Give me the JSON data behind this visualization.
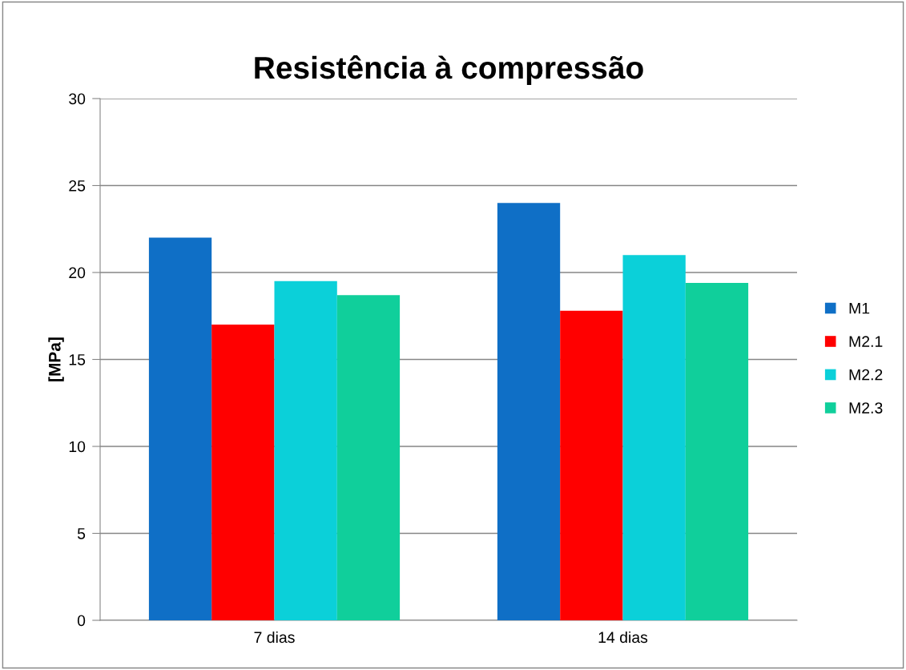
{
  "chart_data": {
    "type": "bar",
    "title": "Resistência à compressão",
    "ylabel": "[MPa]",
    "categories": [
      "7 dias",
      "14 dias"
    ],
    "series": [
      {
        "name": "M1",
        "color": "#0f6fc6",
        "values": [
          22,
          24
        ]
      },
      {
        "name": "M2.1",
        "color": "#ff0000",
        "values": [
          17,
          17.8
        ]
      },
      {
        "name": "M2.2",
        "color": "#0bd0d9",
        "values": [
          19.5,
          21
        ]
      },
      {
        "name": "M2.3",
        "color": "#10cf9b",
        "values": [
          18.7,
          19.4
        ]
      }
    ],
    "ylim": [
      0,
      30
    ],
    "yticks": [
      0,
      5,
      10,
      15,
      20,
      25,
      30
    ],
    "grid": "y",
    "legend": "right"
  }
}
